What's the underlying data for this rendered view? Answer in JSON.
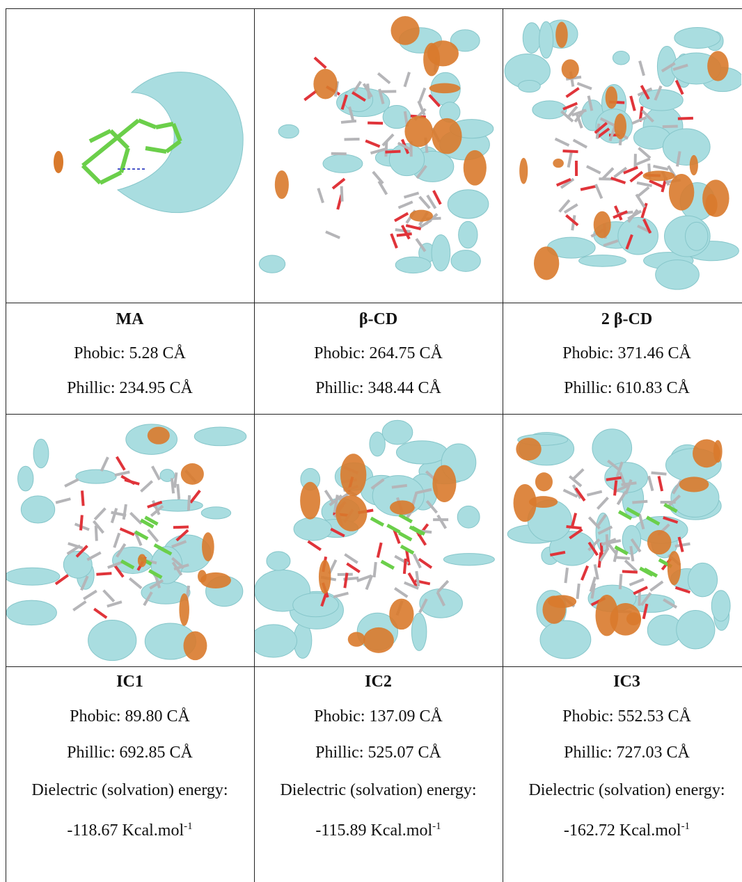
{
  "table": {
    "rows": [
      {
        "cells": [
          {
            "label": "MA",
            "phobic": "Phobic: 5.28 CÅ",
            "phillic": "Phillic: 234.95 CÅ"
          },
          {
            "label": "β-CD",
            "phobic": "Phobic: 264.75 CÅ",
            "phillic": "Phillic: 348.44 CÅ"
          },
          {
            "label": "2 β-CD",
            "phobic": "Phobic: 371.46 CÅ",
            "phillic": "Phillic: 610.83 CÅ"
          }
        ]
      },
      {
        "cells": [
          {
            "label": "IC1",
            "phobic": "Phobic: 89.80 CÅ",
            "phillic": "Phillic: 692.85 CÅ",
            "energy_title": "Dielectric (solvation) energy:",
            "energy": "-118.67 Kcal.mol",
            "energy_exponent": "-1"
          },
          {
            "label": "IC2",
            "phobic": "Phobic: 137.09 CÅ",
            "phillic": "Phillic: 525.07 CÅ",
            "energy_title": "Dielectric (solvation) energy:",
            "energy": "-115.89 Kcal.mol",
            "energy_exponent": "-1"
          },
          {
            "label": "IC3",
            "phobic": "Phobic: 552.53 CÅ",
            "phillic": "Phillic: 727.03 CÅ",
            "energy_title": "Dielectric (solvation) energy:",
            "energy": "-162.72 Kcal.mol",
            "energy_exponent": "-1"
          }
        ]
      }
    ]
  }
}
